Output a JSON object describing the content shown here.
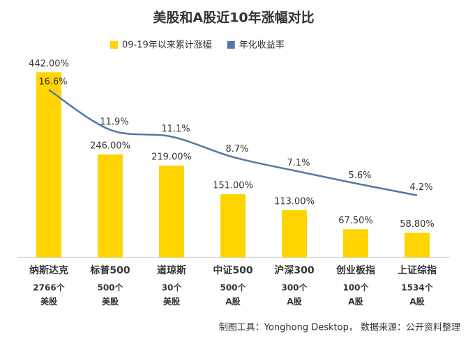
{
  "chart_data": {
    "type": "bar",
    "title": "美股和A股近10年涨幅对比",
    "categories": [
      "纳斯达克",
      "标普500",
      "道琼斯",
      "中证500",
      "沪深300",
      "创业板指",
      "上证综指"
    ],
    "category_notes": [
      [
        "2766个",
        "美股"
      ],
      [
        "500个",
        "美股"
      ],
      [
        "30个",
        "美股"
      ],
      [
        "500个",
        "A股"
      ],
      [
        "300个",
        "A股"
      ],
      [
        "100个",
        "A股"
      ],
      [
        "1534个",
        "A股"
      ]
    ],
    "series": [
      {
        "name": "09-19年以来累计涨幅",
        "type": "bar",
        "color": "#ffd400",
        "values": [
          442,
          246,
          219,
          151,
          113,
          67.5,
          58.8
        ],
        "value_labels": [
          "442.00%",
          "246.00%",
          "219.00%",
          "151.00%",
          "113.00%",
          "67.50%",
          "58.80%"
        ]
      },
      {
        "name": "年化收益率",
        "type": "line",
        "axis": "y2",
        "color": "#4e79a7",
        "values": [
          16.6,
          11.9,
          11.1,
          8.7,
          7.1,
          5.6,
          4.2
        ],
        "value_labels": [
          "16.6%",
          "11.9%",
          "11.1%",
          "8.7%",
          "7.1%",
          "5.6%",
          "4.2%"
        ]
      }
    ],
    "ylim": [
      0,
      465
    ],
    "y2lim": [
      -3.1,
      19.8
    ],
    "legend": "top",
    "footer": "制图工具：Yonghong Desktop， 数据来源：公开资料整理"
  }
}
